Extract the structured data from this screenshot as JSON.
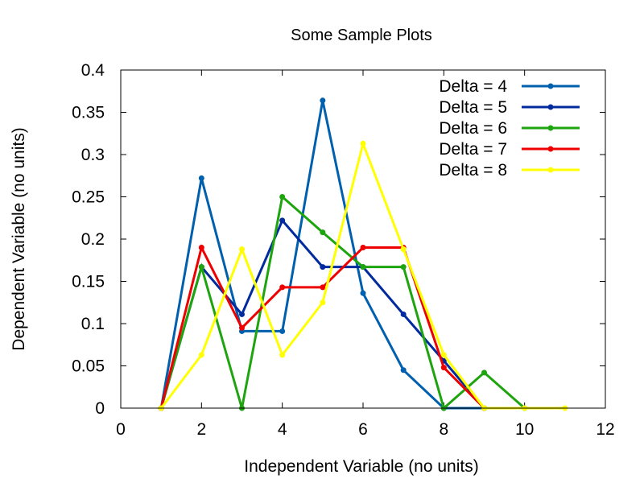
{
  "chart_data": {
    "type": "line",
    "title": "Some Sample Plots",
    "xlabel": "Independent Variable (no units)",
    "ylabel": "Dependent Variable (no units)",
    "xlim": [
      0,
      12
    ],
    "ylim": [
      0,
      0.4
    ],
    "x_ticks": [
      0,
      2,
      4,
      6,
      8,
      10,
      12
    ],
    "y_ticks": [
      0,
      0.05,
      0.1,
      0.15,
      0.2,
      0.25,
      0.3,
      0.35,
      0.4
    ],
    "x_tick_labels": [
      "0",
      "2",
      "4",
      "6",
      "8",
      "10",
      "12"
    ],
    "y_tick_labels": [
      "0",
      "0.05",
      "0.1",
      "0.15",
      "0.2",
      "0.25",
      "0.3",
      "0.35",
      "0.4"
    ],
    "grid": false,
    "legend_position": "top-right",
    "series": [
      {
        "name": "Delta = 4",
        "color": "#0060ad",
        "x": [
          1,
          2,
          3,
          4,
          5,
          6,
          7,
          8,
          9
        ],
        "y": [
          0,
          0.272,
          0.091,
          0.091,
          0.364,
          0.136,
          0.045,
          0,
          0
        ]
      },
      {
        "name": "Delta = 5",
        "color": "#002a9e",
        "x": [
          1,
          2,
          3,
          4,
          5,
          6,
          7,
          8,
          9
        ],
        "y": [
          0,
          0.167,
          0.111,
          0.222,
          0.167,
          0.167,
          0.111,
          0.056,
          0
        ]
      },
      {
        "name": "Delta = 6",
        "color": "#1ea40f",
        "x": [
          1,
          2,
          3,
          4,
          5,
          6,
          7,
          8,
          9,
          10
        ],
        "y": [
          0,
          0.167,
          0,
          0.25,
          0.208,
          0.167,
          0.167,
          0,
          0.042,
          0
        ]
      },
      {
        "name": "Delta = 7",
        "color": "#ee0000",
        "x": [
          1,
          2,
          3,
          4,
          5,
          6,
          7,
          8,
          9
        ],
        "y": [
          0,
          0.19,
          0.095,
          0.143,
          0.143,
          0.19,
          0.19,
          0.048,
          0
        ]
      },
      {
        "name": "Delta = 8",
        "color": "#ffff00",
        "x": [
          1,
          2,
          3,
          4,
          5,
          6,
          7,
          8,
          9,
          10,
          11
        ],
        "y": [
          0,
          0.063,
          0.188,
          0.063,
          0.125,
          0.313,
          0.188,
          0.063,
          0,
          0,
          0
        ]
      }
    ]
  }
}
